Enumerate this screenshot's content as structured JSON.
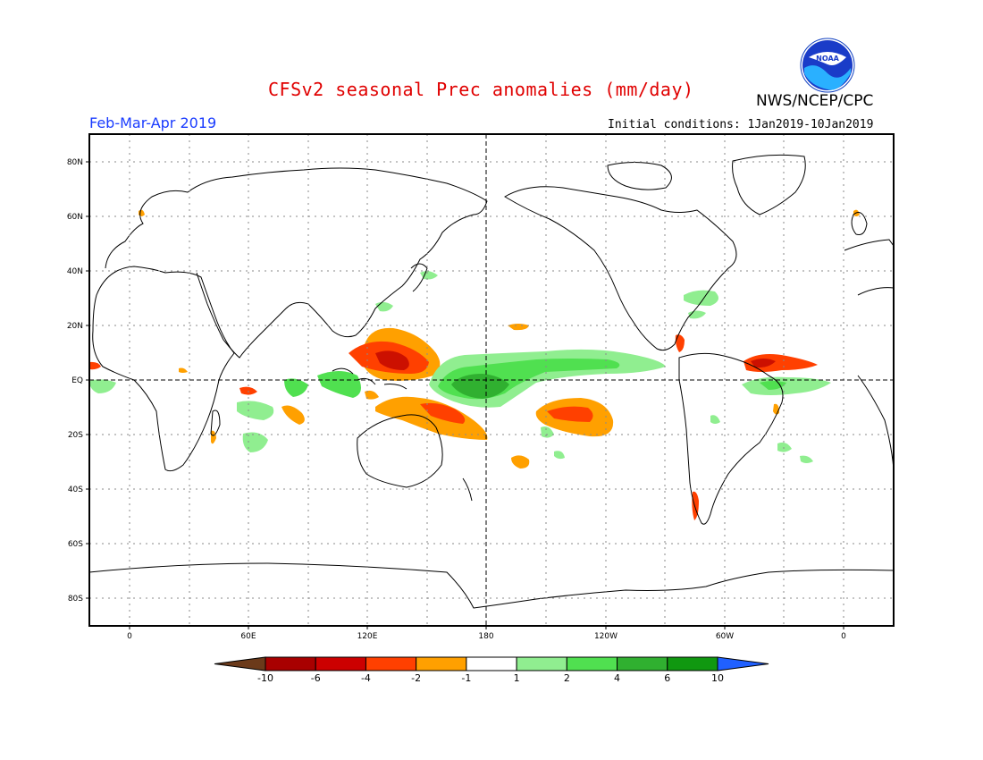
{
  "header": {
    "title": "CFSv2 seasonal Prec anomalies (mm/day)",
    "agency": "NWS/NCEP/CPC",
    "season": "Feb-Mar-Apr 2019",
    "initial_conditions": "Initial conditions: 1Jan2019-10Jan2019",
    "logo_text": "NOAA"
  },
  "map": {
    "lat_labels": [
      "80N",
      "60N",
      "40N",
      "20N",
      "EQ",
      "20S",
      "40S",
      "60S",
      "80S"
    ],
    "lon_labels": [
      "0",
      "60E",
      "120E",
      "180",
      "120W",
      "60W",
      "0"
    ]
  },
  "colorbar": {
    "labels": [
      "-10",
      "-6",
      "-4",
      "-2",
      "-1",
      "1",
      "2",
      "4",
      "6",
      "10"
    ],
    "colors": [
      "#6b3a1a",
      "#a80000",
      "#cc0000",
      "#ff4000",
      "#ffa000",
      "#ffffff",
      "#90ee90",
      "#50e050",
      "#30b030",
      "#109810",
      "#2060ff"
    ]
  }
}
